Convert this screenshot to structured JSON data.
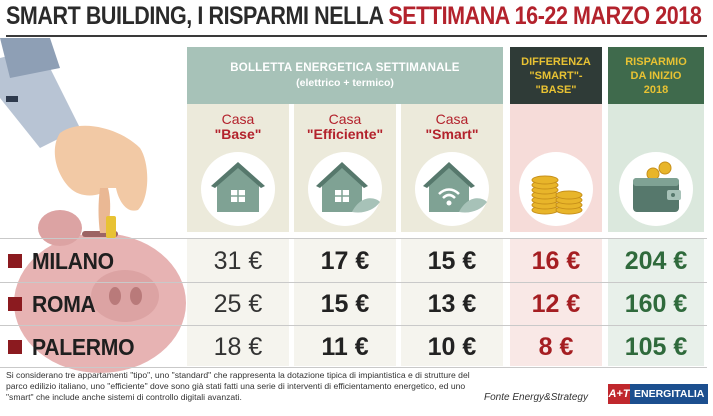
{
  "title": {
    "part1": "SMART BUILDING, I RISPARMI NELLA ",
    "part2": "SETTIMANA 16-22 MARZO 2018"
  },
  "header": {
    "bolletta_line1": "BOLLETTA ENERGETICA SETTIMANALE",
    "bolletta_line2": "(elettrico + termico)",
    "diff_line1": "DIFFERENZA",
    "diff_line2": "\"SMART\"-",
    "diff_line3": "\"BASE\"",
    "risp_line1": "RISPARMIO",
    "risp_line2": "DA INIZIO",
    "risp_line3": "2018"
  },
  "columns": {
    "base": {
      "top": "Casa",
      "bottom": "\"Base\""
    },
    "efficiente": {
      "top": "Casa",
      "bottom": "\"Efficiente\""
    },
    "smart": {
      "top": "Casa",
      "bottom": "\"Smart\""
    }
  },
  "icons": [
    "hand-icon",
    "piggy-bank-icon",
    "house-base-icon",
    "house-efficient-icon",
    "house-smart-icon",
    "coins-icon",
    "wallet-icon"
  ],
  "colors": {
    "accent_red": "#b3222c",
    "header_green": "#a7c2b8",
    "dark_header": "#2f3b37",
    "saving_green": "#3f6a4c",
    "gold": "#e8c233"
  },
  "rows": [
    {
      "city": "MILANO",
      "base": "31 €",
      "efficiente": "17 €",
      "smart": "15 €",
      "differenza": "16 €",
      "risparmio": "204 €"
    },
    {
      "city": "ROMA",
      "base": "25 €",
      "efficiente": "15 €",
      "smart": "13 €",
      "differenza": "12 €",
      "risparmio": "160 €"
    },
    {
      "city": "PALERMO",
      "base": "18 €",
      "efficiente": "11 €",
      "smart": "10 €",
      "differenza": "8 €",
      "risparmio": "105 €"
    }
  ],
  "footnote": "Si considerano tre appartamenti \"tipo\", uno \"standard\" che rappresenta la dotazione tipica di impiantistica e di strutture del parco edilizio italiano, uno \"efficiente\" dove sono già stati fatti una serie di interventi di efficientamento energetico, ed uno \"smart\" che include anche sistemi di controllo digitali avanzati.",
  "source": "Fonte Energy&Strategy",
  "logo": {
    "mark": "A+T",
    "word": "ENERGITALIA"
  }
}
